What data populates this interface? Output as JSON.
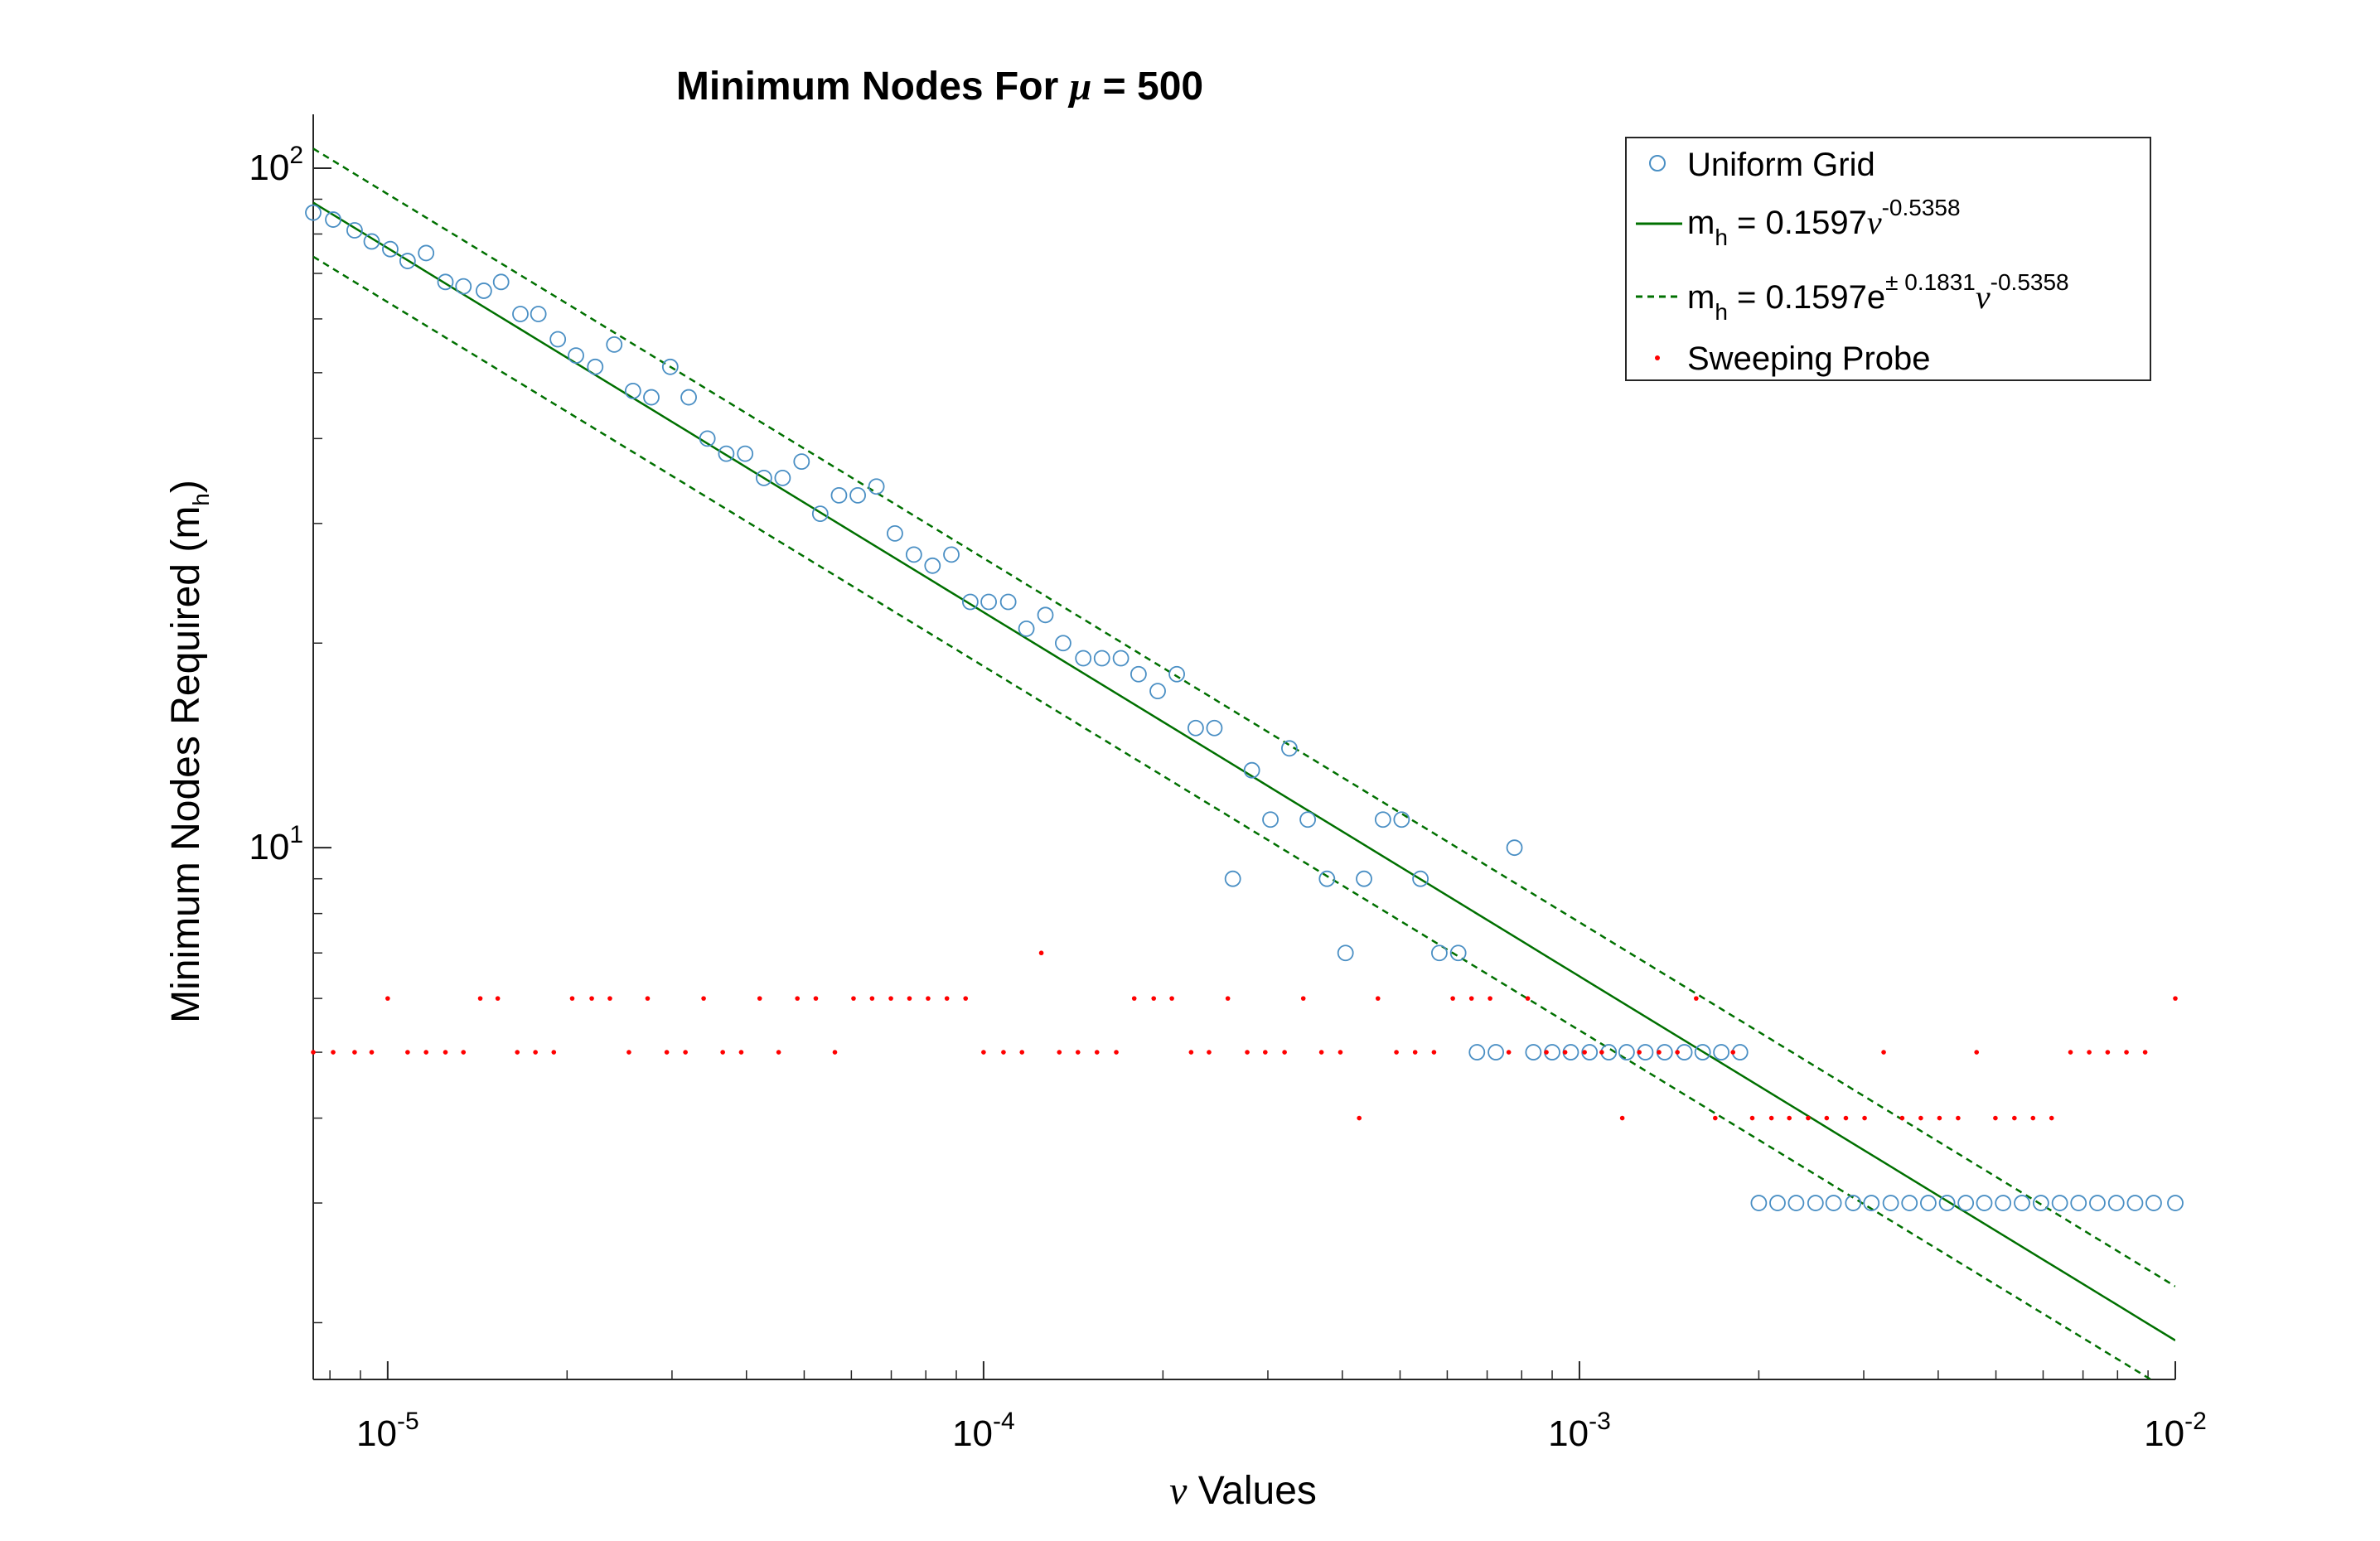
{
  "chart_data": {
    "type": "scatter",
    "title": {
      "prefix": "Minimum Nodes For ",
      "symbol": "μ",
      "suffix": " = 500"
    },
    "xlabel": {
      "symbol": "ν",
      "text": " Values"
    },
    "ylabel": {
      "text": "Minimum Nodes Required (m",
      "sub": "h",
      "close": ")"
    },
    "x_scale": "log",
    "y_scale": "log",
    "xlim": [
      7.5e-06,
      0.01
    ],
    "ylim": [
      1.65,
      120
    ],
    "x_ticks": [
      {
        "value": 1e-05,
        "base": "10",
        "exp": "-5"
      },
      {
        "value": 0.0001,
        "base": "10",
        "exp": "-4"
      },
      {
        "value": 0.001,
        "base": "10",
        "exp": "-3"
      },
      {
        "value": 0.01,
        "base": "10",
        "exp": "-2"
      }
    ],
    "y_ticks": [
      {
        "value": 10,
        "base": "10",
        "exp": "1"
      },
      {
        "value": 100,
        "base": "10",
        "exp": "2"
      }
    ],
    "grid": false,
    "legend_position": "top-right",
    "legend": [
      {
        "label": "Uniform Grid"
      },
      {
        "base": "m",
        "sub": "h",
        "text": " = 0.1597",
        "sym": "ν",
        "sup": "-0.5358"
      },
      {
        "base": "m",
        "sub": "h",
        "text": " = 0.1597e",
        "sup1": "± 0.1831",
        "sym": "ν",
        "sup": "-0.5358"
      },
      {
        "label": "Sweeping Probe"
      }
    ],
    "series": [
      {
        "name": "Uniform Grid",
        "marker": "circle",
        "color": "#4a8fc4",
        "points": [
          [
            7.5e-06,
            86
          ],
          [
            8.1e-06,
            84
          ],
          [
            8.8e-06,
            81
          ],
          [
            9.4e-06,
            78
          ],
          [
            1.01e-05,
            76
          ],
          [
            1.08e-05,
            73
          ],
          [
            1.16e-05,
            75
          ],
          [
            1.25e-05,
            68
          ],
          [
            1.34e-05,
            67
          ],
          [
            1.45e-05,
            66
          ],
          [
            1.55e-05,
            68
          ],
          [
            1.67e-05,
            61
          ],
          [
            1.79e-05,
            61
          ],
          [
            1.93e-05,
            56
          ],
          [
            2.07e-05,
            53
          ],
          [
            2.23e-05,
            51
          ],
          [
            2.4e-05,
            55
          ],
          [
            2.58e-05,
            47
          ],
          [
            2.77e-05,
            46
          ],
          [
            2.98e-05,
            51
          ],
          [
            3.2e-05,
            46
          ],
          [
            3.44e-05,
            40
          ],
          [
            3.7e-05,
            38
          ],
          [
            3.98e-05,
            38
          ],
          [
            4.28e-05,
            35
          ],
          [
            4.6e-05,
            35
          ],
          [
            4.95e-05,
            37
          ],
          [
            5.32e-05,
            31
          ],
          [
            5.72e-05,
            33
          ],
          [
            6.15e-05,
            33
          ],
          [
            6.61e-05,
            34
          ],
          [
            7.1e-05,
            29
          ],
          [
            7.64e-05,
            27
          ],
          [
            8.21e-05,
            26
          ],
          [
            8.83e-05,
            27
          ],
          [
            9.5e-05,
            23
          ],
          [
            0.000102,
            23
          ],
          [
            0.00011,
            23
          ],
          [
            0.000118,
            21
          ],
          [
            0.000127,
            22
          ],
          [
            0.000136,
            20
          ],
          [
            0.000147,
            19
          ],
          [
            0.000158,
            19
          ],
          [
            0.00017,
            19
          ],
          [
            0.000182,
            18
          ],
          [
            0.000196,
            17
          ],
          [
            0.000211,
            18
          ],
          [
            0.000227,
            15
          ],
          [
            0.000244,
            15
          ],
          [
            0.000262,
            9
          ],
          [
            0.000282,
            13
          ],
          [
            0.000303,
            11
          ],
          [
            0.000326,
            14
          ],
          [
            0.00035,
            11
          ],
          [
            0.000377,
            9
          ],
          [
            0.000405,
            7
          ],
          [
            0.000435,
            9
          ],
          [
            0.000468,
            11
          ],
          [
            0.000503,
            11
          ],
          [
            0.000541,
            9
          ],
          [
            0.000582,
            7
          ],
          [
            0.000626,
            7
          ],
          [
            0.000673,
            5
          ],
          [
            0.000724,
            5
          ],
          [
            0.000778,
            10
          ],
          [
            0.000837,
            5
          ],
          [
            0.0009,
            5
          ],
          [
            0.000967,
            5
          ],
          [
            0.00104,
            5
          ],
          [
            0.00112,
            5
          ],
          [
            0.0012,
            5
          ],
          [
            0.00129,
            5
          ],
          [
            0.00139,
            5
          ],
          [
            0.0015,
            5
          ],
          [
            0.00161,
            5
          ],
          [
            0.00173,
            5
          ],
          [
            0.00186,
            5
          ],
          [
            0.002,
            3
          ],
          [
            0.00215,
            3
          ],
          [
            0.00231,
            3
          ],
          [
            0.00249,
            3
          ],
          [
            0.00267,
            3
          ],
          [
            0.00288,
            3
          ],
          [
            0.00309,
            3
          ],
          [
            0.00333,
            3
          ],
          [
            0.00358,
            3
          ],
          [
            0.00385,
            3
          ],
          [
            0.00414,
            3
          ],
          [
            0.00445,
            3
          ],
          [
            0.00478,
            3
          ],
          [
            0.00514,
            3
          ],
          [
            0.00553,
            3
          ],
          [
            0.00595,
            3
          ],
          [
            0.0064,
            3
          ],
          [
            0.00688,
            3
          ],
          [
            0.0074,
            3
          ],
          [
            0.00796,
            3
          ],
          [
            0.00856,
            3
          ],
          [
            0.0092,
            3
          ],
          [
            0.01,
            3
          ]
        ]
      },
      {
        "name": "Sweeping Probe",
        "marker": "dot",
        "color": "#ff0000",
        "points": [
          [
            7.5e-06,
            5
          ],
          [
            8.1e-06,
            5
          ],
          [
            8.8e-06,
            5
          ],
          [
            9.4e-06,
            5
          ],
          [
            1e-05,
            6
          ],
          [
            1.08e-05,
            5
          ],
          [
            1.16e-05,
            5
          ],
          [
            1.25e-05,
            5
          ],
          [
            1.34e-05,
            5
          ],
          [
            1.43e-05,
            6
          ],
          [
            1.53e-05,
            6
          ],
          [
            1.65e-05,
            5
          ],
          [
            1.77e-05,
            5
          ],
          [
            1.9e-05,
            5
          ],
          [
            2.04e-05,
            6
          ],
          [
            2.2e-05,
            6
          ],
          [
            2.36e-05,
            6
          ],
          [
            2.54e-05,
            5
          ],
          [
            2.73e-05,
            6
          ],
          [
            2.94e-05,
            5
          ],
          [
            3.16e-05,
            5
          ],
          [
            3.39e-05,
            6
          ],
          [
            3.65e-05,
            5
          ],
          [
            3.92e-05,
            5
          ],
          [
            4.21e-05,
            6
          ],
          [
            4.53e-05,
            5
          ],
          [
            4.87e-05,
            6
          ],
          [
            5.23e-05,
            6
          ],
          [
            5.63e-05,
            5
          ],
          [
            6.05e-05,
            6
          ],
          [
            6.5e-05,
            6
          ],
          [
            6.99e-05,
            6
          ],
          [
            7.51e-05,
            6
          ],
          [
            8.07e-05,
            6
          ],
          [
            8.68e-05,
            6
          ],
          [
            9.33e-05,
            6
          ],
          [
            0.0001,
            5
          ],
          [
            0.000108,
            5
          ],
          [
            0.000116,
            5
          ],
          [
            0.000125,
            7
          ],
          [
            0.000134,
            5
          ],
          [
            0.000144,
            5
          ],
          [
            0.000155,
            5
          ],
          [
            0.000167,
            5
          ],
          [
            0.000179,
            6
          ],
          [
            0.000193,
            6
          ],
          [
            0.000207,
            6
          ],
          [
            0.000223,
            5
          ],
          [
            0.000239,
            5
          ],
          [
            0.000257,
            6
          ],
          [
            0.000277,
            5
          ],
          [
            0.000297,
            5
          ],
          [
            0.00032,
            5
          ],
          [
            0.000344,
            6
          ],
          [
            0.000369,
            5
          ],
          [
            0.000397,
            5
          ],
          [
            0.000427,
            4
          ],
          [
            0.000459,
            6
          ],
          [
            0.000493,
            5
          ],
          [
            0.00053,
            5
          ],
          [
            0.00057,
            5
          ],
          [
            0.000613,
            6
          ],
          [
            0.000659,
            6
          ],
          [
            0.000708,
            6
          ],
          [
            0.000761,
            5
          ],
          [
            0.000819,
            6
          ],
          [
            0.00088,
            5
          ],
          [
            0.000946,
            5
          ],
          [
            0.00102,
            5
          ],
          [
            0.00109,
            5
          ],
          [
            0.00118,
            4
          ],
          [
            0.00126,
            5
          ],
          [
            0.00136,
            5
          ],
          [
            0.00146,
            5
          ],
          [
            0.00157,
            6
          ],
          [
            0.00169,
            4
          ],
          [
            0.00181,
            5
          ],
          [
            0.00195,
            4
          ],
          [
            0.0021,
            4
          ],
          [
            0.00225,
            4
          ],
          [
            0.00242,
            4
          ],
          [
            0.0026,
            4
          ],
          [
            0.0028,
            4
          ],
          [
            0.00301,
            4
          ],
          [
            0.00324,
            5
          ],
          [
            0.00348,
            4
          ],
          [
            0.00374,
            4
          ],
          [
            0.00402,
            4
          ],
          [
            0.00432,
            4
          ],
          [
            0.00464,
            5
          ],
          [
            0.00499,
            4
          ],
          [
            0.00537,
            4
          ],
          [
            0.00577,
            4
          ],
          [
            0.0062,
            4
          ],
          [
            0.00667,
            5
          ],
          [
            0.00717,
            5
          ],
          [
            0.0077,
            5
          ],
          [
            0.00828,
            5
          ],
          [
            0.0089,
            5
          ],
          [
            0.01,
            6
          ]
        ]
      },
      {
        "name": "m_h = 0.1597ν^-0.5358",
        "marker": "line",
        "color": "#007000",
        "coef": 0.1597,
        "exponent": -0.5358
      },
      {
        "name": "m_h = 0.1597e^(±0.1831)ν^-0.5358",
        "marker": "dashed",
        "color": "#007000",
        "coef": 0.1597,
        "band": 0.1831,
        "exponent": -0.5358
      }
    ]
  }
}
